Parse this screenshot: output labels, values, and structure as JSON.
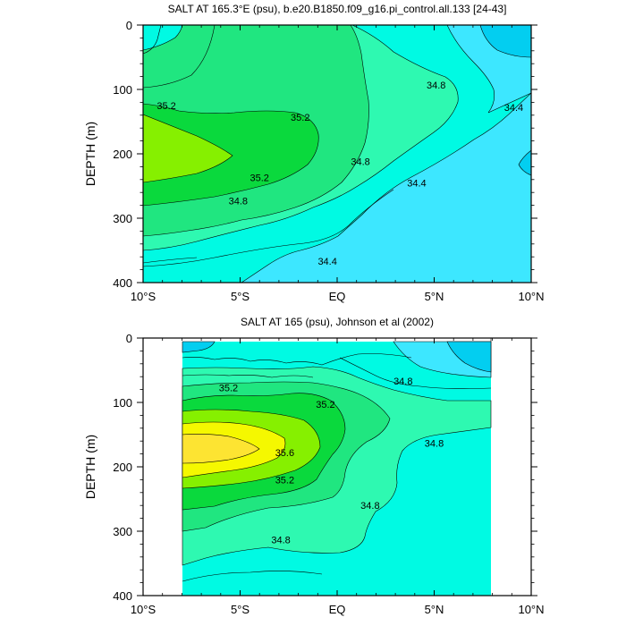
{
  "chart_data": [
    {
      "type": "contour",
      "title": "SALT AT 165.3°E (psu), b.e20.B1850.f09_g16.pi_control.all.133 [24-43]",
      "ylabel": "DEPTH (m)",
      "xlabel": "",
      "x_ticks": [
        "10°S",
        "5°S",
        "EQ",
        "5°N",
        "10°N"
      ],
      "x_tick_values": [
        -10,
        -5,
        0,
        5,
        10
      ],
      "y_ticks": [
        0,
        100,
        200,
        300,
        400
      ],
      "xlim": [
        -10,
        10
      ],
      "ylim": [
        400,
        0
      ],
      "y_inverted": true,
      "data_x_range": [
        -10,
        10
      ],
      "contour_interval": 0.2,
      "contour_labels": [
        {
          "text": "35.2",
          "x": -8.8,
          "y": 125
        },
        {
          "text": "35.2",
          "x": -1.9,
          "y": 143
        },
        {
          "text": "35.2",
          "x": -4.0,
          "y": 237
        },
        {
          "text": "34.8",
          "x": 5.1,
          "y": 93
        },
        {
          "text": "34.8",
          "x": 1.2,
          "y": 212
        },
        {
          "text": "34.8",
          "x": -5.1,
          "y": 273
        },
        {
          "text": "34.4",
          "x": 9.1,
          "y": 128
        },
        {
          "text": "34.4",
          "x": 4.1,
          "y": 245
        },
        {
          "text": "34.4",
          "x": -0.5,
          "y": 367
        }
      ]
    },
    {
      "type": "contour",
      "title": "SALT AT 165 (psu), Johnson et al (2002)",
      "ylabel": "DEPTH (m)",
      "xlabel": "",
      "x_ticks": [
        "10°S",
        "5°S",
        "EQ",
        "5°N",
        "10°N"
      ],
      "x_tick_values": [
        -10,
        -5,
        0,
        5,
        10
      ],
      "y_ticks": [
        0,
        100,
        200,
        300,
        400
      ],
      "xlim": [
        -10,
        10
      ],
      "ylim": [
        400,
        0
      ],
      "y_inverted": true,
      "data_x_range": [
        -8,
        8
      ],
      "contour_interval": 0.2,
      "contour_labels": [
        {
          "text": "35.2",
          "x": -5.6,
          "y": 77
        },
        {
          "text": "35.2",
          "x": -0.6,
          "y": 103
        },
        {
          "text": "35.6",
          "x": -2.7,
          "y": 178
        },
        {
          "text": "35.2",
          "x": -2.7,
          "y": 220
        },
        {
          "text": "34.8",
          "x": 3.4,
          "y": 67
        },
        {
          "text": "34.8",
          "x": 5.0,
          "y": 163
        },
        {
          "text": "34.8",
          "x": 1.7,
          "y": 260
        },
        {
          "text": "34.8",
          "x": -2.9,
          "y": 313
        }
      ]
    }
  ],
  "palette": {
    "lt34_4": "#03cef0",
    "34_4": "#3de7ff",
    "34_6": "#00fae3",
    "34_8": "#2ef9b1",
    "35_0": "#20e680",
    "35_2": "#0ad93d",
    "35_4": "#86f000",
    "35_6": "#f5f800",
    "35_8": "#fde432",
    "line": "#000000",
    "background": "#ffffff"
  }
}
